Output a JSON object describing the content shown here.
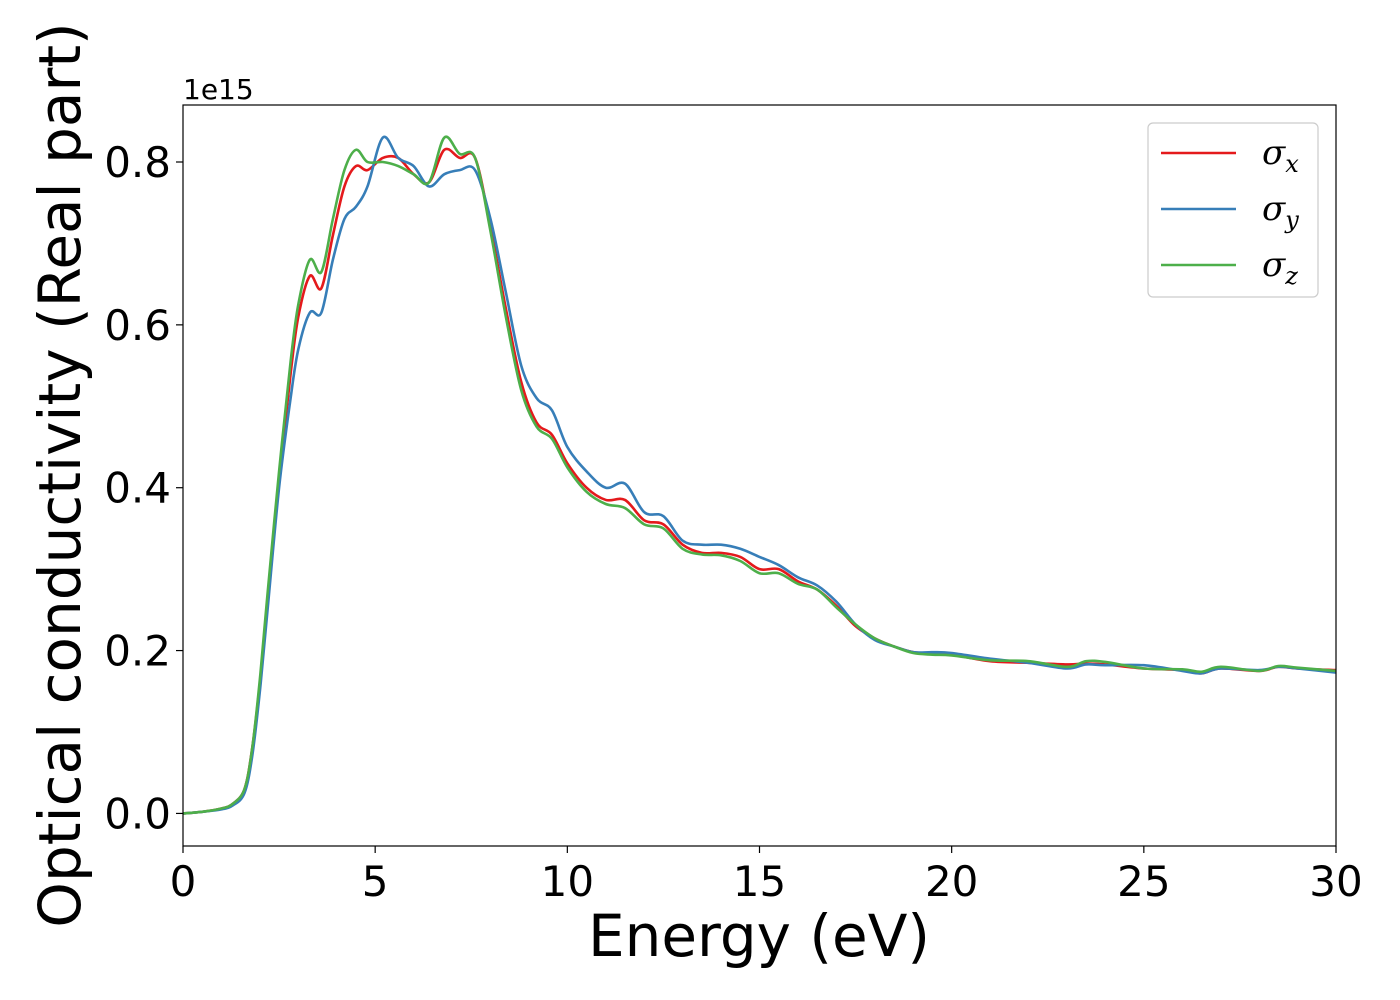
{
  "chart_data": {
    "type": "line",
    "xlabel": "Energy (eV)",
    "ylabel": "Optical conductivity (Real part)",
    "y_offset_label": "1e15",
    "xlim": [
      0,
      30
    ],
    "ylim": [
      -0.04,
      0.87
    ],
    "xticks": [
      0,
      5,
      10,
      15,
      20,
      25,
      30
    ],
    "yticks": [
      0.0,
      0.2,
      0.4,
      0.6,
      0.8
    ],
    "grid": false,
    "legend_position": "upper right",
    "x": [
      0,
      0.5,
      1.0,
      1.3,
      1.6,
      1.8,
      2.0,
      2.2,
      2.5,
      2.8,
      3.0,
      3.3,
      3.6,
      3.9,
      4.2,
      4.5,
      4.8,
      5.2,
      5.6,
      6.0,
      6.4,
      6.8,
      7.2,
      7.6,
      8.0,
      8.4,
      8.8,
      9.2,
      9.6,
      10.0,
      10.5,
      11.0,
      11.5,
      12.0,
      12.5,
      13.0,
      13.5,
      14.0,
      14.5,
      15.0,
      15.5,
      16.0,
      16.5,
      17.0,
      17.5,
      18.0,
      18.5,
      19.0,
      19.5,
      20.0,
      21.0,
      22.0,
      23.0,
      23.5,
      24.0,
      25.0,
      26.0,
      26.5,
      27.0,
      28.0,
      28.5,
      29.0,
      30.0
    ],
    "series": [
      {
        "name": "σx",
        "color": "#e41a1c",
        "values": [
          0.0,
          0.002,
          0.006,
          0.012,
          0.03,
          0.08,
          0.16,
          0.26,
          0.41,
          0.54,
          0.61,
          0.66,
          0.645,
          0.71,
          0.77,
          0.795,
          0.79,
          0.805,
          0.805,
          0.785,
          0.775,
          0.815,
          0.805,
          0.805,
          0.72,
          0.62,
          0.53,
          0.48,
          0.465,
          0.43,
          0.4,
          0.385,
          0.385,
          0.36,
          0.355,
          0.33,
          0.32,
          0.32,
          0.315,
          0.3,
          0.3,
          0.285,
          0.275,
          0.255,
          0.23,
          0.215,
          0.205,
          0.198,
          0.196,
          0.195,
          0.187,
          0.185,
          0.183,
          0.184,
          0.183,
          0.178,
          0.176,
          0.172,
          0.178,
          0.175,
          0.18,
          0.178,
          0.176
        ]
      },
      {
        "name": "σy",
        "color": "#377eb8",
        "values": [
          0.0,
          0.002,
          0.005,
          0.01,
          0.025,
          0.07,
          0.15,
          0.25,
          0.4,
          0.51,
          0.57,
          0.615,
          0.615,
          0.68,
          0.73,
          0.745,
          0.77,
          0.83,
          0.805,
          0.795,
          0.77,
          0.785,
          0.79,
          0.79,
          0.73,
          0.64,
          0.55,
          0.51,
          0.495,
          0.45,
          0.42,
          0.4,
          0.405,
          0.37,
          0.365,
          0.335,
          0.33,
          0.33,
          0.325,
          0.315,
          0.305,
          0.29,
          0.28,
          0.26,
          0.232,
          0.213,
          0.205,
          0.198,
          0.198,
          0.197,
          0.19,
          0.185,
          0.178,
          0.183,
          0.182,
          0.182,
          0.175,
          0.172,
          0.178,
          0.176,
          0.18,
          0.178,
          0.173
        ]
      },
      {
        "name": "σz",
        "color": "#4daf4a",
        "values": [
          0.0,
          0.002,
          0.006,
          0.012,
          0.03,
          0.08,
          0.165,
          0.27,
          0.42,
          0.555,
          0.625,
          0.68,
          0.665,
          0.73,
          0.79,
          0.815,
          0.8,
          0.8,
          0.795,
          0.785,
          0.775,
          0.83,
          0.81,
          0.805,
          0.715,
          0.61,
          0.52,
          0.475,
          0.46,
          0.425,
          0.395,
          0.38,
          0.375,
          0.355,
          0.35,
          0.325,
          0.318,
          0.317,
          0.31,
          0.295,
          0.295,
          0.282,
          0.275,
          0.253,
          0.232,
          0.215,
          0.205,
          0.197,
          0.195,
          0.194,
          0.188,
          0.187,
          0.18,
          0.187,
          0.186,
          0.178,
          0.177,
          0.174,
          0.18,
          0.175,
          0.181,
          0.179,
          0.175
        ]
      }
    ]
  }
}
